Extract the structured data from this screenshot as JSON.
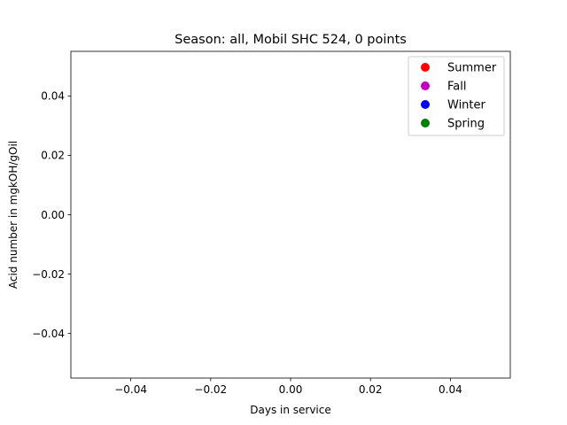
{
  "chart_data": {
    "type": "scatter",
    "title": "Season: all, Mobil SHC 524, 0 points",
    "xlabel": "Days in service",
    "ylabel": "Acid number in mgkOH/gOil",
    "xlim": [
      -0.055,
      0.055
    ],
    "ylim": [
      -0.055,
      0.055
    ],
    "xticks": [
      -0.04,
      -0.02,
      0.0,
      0.02,
      0.04
    ],
    "xtick_labels": [
      "−0.04",
      "−0.02",
      "0.00",
      "0.02",
      "0.04"
    ],
    "yticks": [
      -0.04,
      -0.02,
      0.0,
      0.02,
      0.04
    ],
    "ytick_labels": [
      "−0.04",
      "−0.02",
      "0.00",
      "0.02",
      "0.04"
    ],
    "grid": false,
    "legend_position": "top-right",
    "series": [
      {
        "name": "Summer",
        "color": "#ff0000",
        "marker": "circle",
        "points": []
      },
      {
        "name": "Fall",
        "color": "#bf00bf",
        "marker": "circle",
        "points": []
      },
      {
        "name": "Winter",
        "color": "#0000ff",
        "marker": "circle",
        "points": []
      },
      {
        "name": "Spring",
        "color": "#008000",
        "marker": "circle",
        "points": []
      }
    ]
  }
}
